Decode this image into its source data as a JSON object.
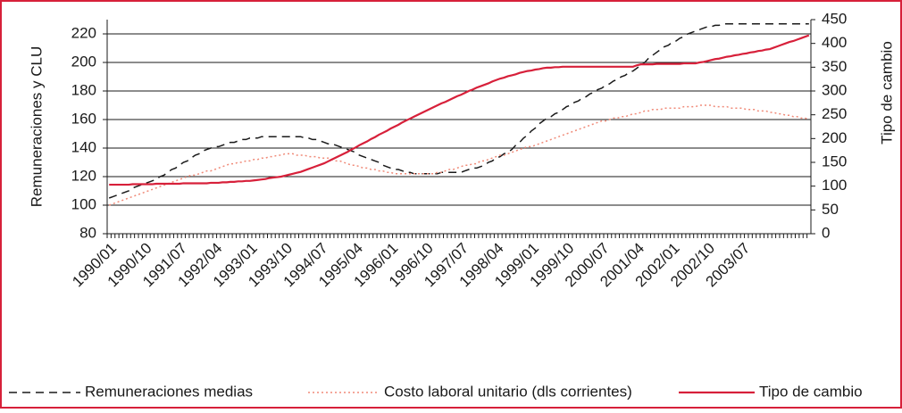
{
  "chart_data": {
    "type": "line",
    "y_label": "Remuneraciones y CLU",
    "y2_label": "Tipo de cambio",
    "categories": [
      "1990/01",
      null,
      null,
      null,
      null,
      null,
      null,
      null,
      null,
      "1990/10",
      null,
      null,
      null,
      null,
      null,
      null,
      null,
      null,
      "1991/07",
      null,
      null,
      null,
      null,
      null,
      null,
      null,
      null,
      "1992/04",
      null,
      null,
      null,
      null,
      null,
      null,
      null,
      null,
      "1993/01",
      null,
      null,
      null,
      null,
      null,
      null,
      null,
      null,
      "1993/10",
      null,
      null,
      null,
      null,
      null,
      null,
      null,
      null,
      "1994/07",
      null,
      null,
      null,
      null,
      null,
      null,
      null,
      null,
      "1995/04",
      null,
      null,
      null,
      null,
      null,
      null,
      null,
      null,
      "1996/01",
      null,
      null,
      null,
      null,
      null,
      null,
      null,
      null,
      "1996/10",
      null,
      null,
      null,
      null,
      null,
      null,
      null,
      null,
      "1997/07",
      null,
      null,
      null,
      null,
      null,
      null,
      null,
      null,
      "1998/04",
      null,
      null,
      null,
      null,
      null,
      null,
      null,
      null,
      "1999/01",
      null,
      null,
      null,
      null,
      null,
      null,
      null,
      null,
      "1999/10",
      null,
      null,
      null,
      null,
      null,
      null,
      null,
      null,
      "2000/07",
      null,
      null,
      null,
      null,
      null,
      null,
      null,
      null,
      "2001/04",
      null,
      null,
      null,
      null,
      null,
      null,
      null,
      null,
      "2002/01",
      null,
      null,
      null,
      null,
      null,
      null,
      null,
      null,
      "2002/10",
      null,
      null,
      null,
      null,
      null,
      null,
      null,
      null,
      "2003/07",
      null,
      null,
      null,
      null,
      null,
      null,
      null,
      null,
      null,
      null,
      null,
      null,
      null,
      null,
      null,
      null,
      null
    ],
    "series": [
      {
        "name": "Remuneraciones medias",
        "color": "#1a1a1a",
        "dash": "dashed",
        "axis": "y",
        "values": [
          105,
          106,
          107,
          108,
          109,
          110,
          112,
          113,
          114,
          115,
          116,
          117,
          118,
          120,
          121,
          123,
          125,
          126,
          128,
          130,
          131,
          133,
          135,
          136,
          138,
          139,
          140,
          141,
          141,
          142,
          143,
          144,
          144,
          145,
          146,
          146,
          147,
          147,
          147,
          148,
          148,
          148,
          148,
          148,
          148,
          148,
          148,
          148,
          148,
          148,
          147,
          147,
          146,
          146,
          145,
          144,
          143,
          143,
          142,
          141,
          140,
          139,
          138,
          137,
          135,
          134,
          133,
          132,
          131,
          130,
          128,
          127,
          126,
          125,
          125,
          124,
          123,
          123,
          122,
          122,
          122,
          122,
          122,
          122,
          122,
          123,
          123,
          123,
          123,
          123,
          123,
          124,
          125,
          126,
          126,
          127,
          128,
          130,
          131,
          133,
          134,
          136,
          137,
          139,
          142,
          144,
          147,
          149,
          152,
          154,
          157,
          159,
          161,
          162,
          164,
          165,
          167,
          169,
          170,
          172,
          173,
          175,
          176,
          178,
          179,
          181,
          182,
          184,
          185,
          187,
          188,
          190,
          191,
          193,
          194,
          196,
          198,
          200,
          203,
          205,
          207,
          209,
          211,
          212,
          214,
          215,
          217,
          218,
          220,
          221,
          222,
          223,
          224,
          225,
          225,
          226,
          226,
          227,
          227,
          227,
          227,
          227,
          227,
          227,
          227,
          227,
          227,
          227,
          227,
          227,
          227,
          227,
          227,
          227,
          227,
          227,
          227,
          227,
          227,
          227
        ]
      },
      {
        "name": "Costo laboral unitario (dls corrientes)",
        "color": "#f08a78",
        "dash": "dotted",
        "axis": "y",
        "values": [
          100,
          101,
          102,
          103,
          104,
          105,
          106,
          107,
          108,
          109,
          110,
          111,
          112,
          113,
          114,
          115,
          116,
          117,
          118,
          119,
          120,
          121,
          121,
          122,
          123,
          124,
          124,
          125,
          126,
          127,
          128,
          129,
          129,
          130,
          130,
          131,
          131,
          132,
          132,
          133,
          133,
          134,
          134,
          135,
          135,
          136,
          136,
          136,
          135,
          135,
          135,
          134,
          134,
          134,
          133,
          133,
          133,
          132,
          131,
          131,
          130,
          129,
          128,
          128,
          127,
          126,
          126,
          125,
          125,
          124,
          124,
          123,
          123,
          122,
          122,
          122,
          122,
          122,
          122,
          122,
          122,
          122,
          122,
          122,
          123,
          123,
          124,
          125,
          125,
          126,
          127,
          128,
          128,
          129,
          129,
          131,
          131,
          132,
          133,
          134,
          135,
          135,
          136,
          137,
          138,
          139,
          140,
          141,
          141,
          142,
          143,
          144,
          145,
          146,
          147,
          148,
          149,
          150,
          151,
          152,
          153,
          154,
          155,
          156,
          157,
          158,
          159,
          159,
          160,
          161,
          161,
          162,
          162,
          163,
          164,
          164,
          165,
          166,
          166,
          167,
          167,
          167,
          168,
          168,
          168,
          168,
          168,
          169,
          169,
          169,
          169,
          170,
          170,
          170,
          170,
          169,
          169,
          169,
          169,
          168,
          168,
          168,
          168,
          167,
          167,
          167,
          166,
          166,
          166,
          165,
          165,
          164,
          164,
          163,
          163,
          162,
          162,
          161,
          161,
          160
        ]
      },
      {
        "name": "Tipo de cambio",
        "color": "#d7203a",
        "dash": "solid",
        "axis": "y2",
        "values": [
          103,
          103,
          103,
          103,
          103,
          103,
          104,
          104,
          104,
          104,
          104,
          104,
          105,
          105,
          105,
          105,
          105,
          105,
          105,
          106,
          106,
          106,
          106,
          106,
          106,
          106,
          107,
          107,
          107,
          108,
          108,
          109,
          109,
          110,
          110,
          111,
          111,
          112,
          113,
          114,
          115,
          117,
          118,
          119,
          120,
          122,
          124,
          126,
          128,
          130,
          133,
          136,
          139,
          142,
          145,
          148,
          152,
          156,
          160,
          164,
          168,
          172,
          177,
          181,
          186,
          190,
          194,
          199,
          203,
          208,
          212,
          216,
          221,
          225,
          229,
          234,
          238,
          242,
          246,
          250,
          254,
          258,
          262,
          266,
          270,
          274,
          277,
          281,
          285,
          289,
          292,
          296,
          300,
          303,
          307,
          310,
          313,
          316,
          320,
          323,
          326,
          328,
          331,
          333,
          335,
          338,
          340,
          342,
          343,
          345,
          346,
          348,
          349,
          349,
          350,
          350,
          351,
          351,
          351,
          351,
          351,
          351,
          351,
          351,
          351,
          351,
          351,
          351,
          351,
          351,
          351,
          351,
          351,
          351,
          351,
          354,
          356,
          356,
          356,
          356,
          357,
          357,
          357,
          357,
          357,
          357,
          357,
          358,
          358,
          358,
          358,
          360,
          361,
          363,
          365,
          367,
          368,
          370,
          372,
          373,
          375,
          376,
          378,
          379,
          381,
          382,
          384,
          385,
          387,
          388,
          391,
          394,
          397,
          400,
          403,
          405,
          408,
          411,
          414,
          417
        ]
      }
    ],
    "ylim": [
      80,
      230
    ],
    "yticks": [
      80,
      100,
      120,
      140,
      160,
      180,
      200,
      220
    ],
    "y2lim": [
      0,
      450
    ],
    "y2ticks": [
      0,
      50,
      100,
      150,
      200,
      250,
      300,
      350,
      400,
      450
    ],
    "grid": true,
    "legend": "bottom"
  }
}
